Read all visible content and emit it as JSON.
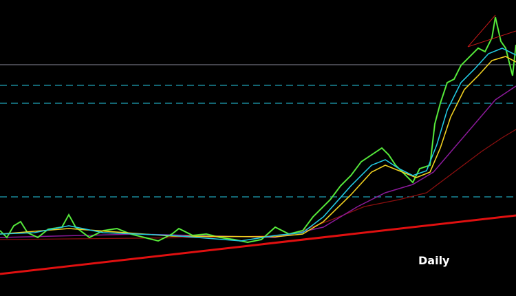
{
  "timeframe_label": "Daily"
}
